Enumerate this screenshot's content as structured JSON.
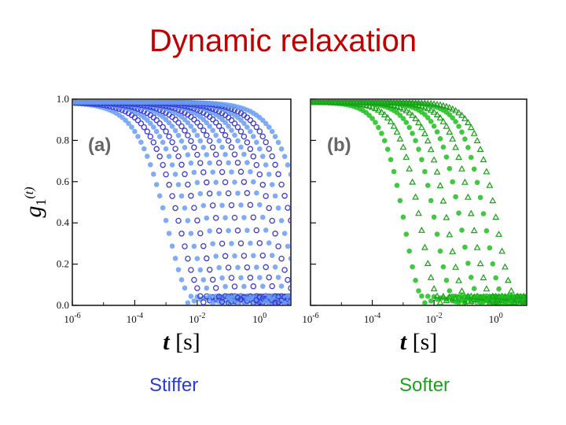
{
  "slide": {
    "title": "Dynamic relaxation",
    "caption_left": "Stiffer",
    "caption_right": "Softer"
  },
  "chart_data": [
    {
      "type": "scatter",
      "panel_label": "(a)",
      "xscale": "log",
      "xlim": [
        1e-06,
        10
      ],
      "ylim": [
        0.0,
        1.0
      ],
      "x_ticks": [
        1e-06,
        0.0001,
        0.01,
        1
      ],
      "y_ticks": [
        "0.0",
        "0.2",
        "0.4",
        "0.6",
        "0.8",
        "1.0"
      ],
      "xlabel_var": "t",
      "xlabel_unit": "[s]",
      "ylabel_main": "g",
      "ylabel_sub": "1",
      "ylabel_arg": "(t)",
      "colors": [
        "#6a9ef5",
        "#3a3ad8"
      ],
      "series_tau": [
        0.0012,
        0.003,
        0.006,
        0.012,
        0.025,
        0.05,
        0.1,
        0.2,
        0.4,
        0.8,
        1.6,
        3,
        6,
        12,
        30
      ]
    },
    {
      "type": "scatter",
      "panel_label": "(b)",
      "xscale": "log",
      "xlim": [
        1e-06,
        10
      ],
      "ylim": [
        0.0,
        1.0
      ],
      "x_ticks": [
        1e-06,
        0.0001,
        0.01,
        1
      ],
      "y_ticks": [
        "0.0",
        "0.2",
        "0.4",
        "0.6",
        "0.8",
        "1.0"
      ],
      "xlabel_var": "t",
      "xlabel_unit": "[s]",
      "colors": [
        "#1fbf1f",
        "#18a018"
      ],
      "series_tau": [
        0.0012,
        0.004,
        0.012,
        0.03,
        0.08,
        0.2,
        0.5,
        1.2
      ]
    }
  ]
}
